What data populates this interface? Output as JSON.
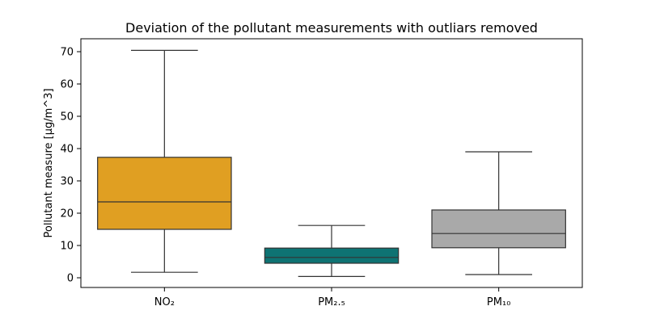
{
  "chart_data": {
    "type": "box",
    "title": "Deviation of the pollutant measurements with outliars removed",
    "xlabel": "",
    "ylabel": "Pollutant measure [µg/m^3]",
    "ylim": [
      -3,
      74
    ],
    "yticks": [
      0,
      10,
      20,
      30,
      40,
      50,
      60,
      70
    ],
    "grid": false,
    "categories": [
      "NO₂",
      "PM₂.₅",
      "PM₁₀"
    ],
    "boxes": [
      {
        "label": "NO₂",
        "min": 1.7,
        "q1": 15.0,
        "median": 23.5,
        "q3": 37.3,
        "max": 70.4,
        "color": "#e09f22"
      },
      {
        "label": "PM₂.₅",
        "min": 0.4,
        "q1": 4.5,
        "median": 6.3,
        "q3": 9.2,
        "max": 16.2,
        "color": "#0e7373"
      },
      {
        "label": "PM₁₀",
        "min": 1.0,
        "q1": 9.3,
        "median": 13.7,
        "q3": 21.0,
        "max": 39.0,
        "color": "#a9a9a9"
      }
    ]
  }
}
